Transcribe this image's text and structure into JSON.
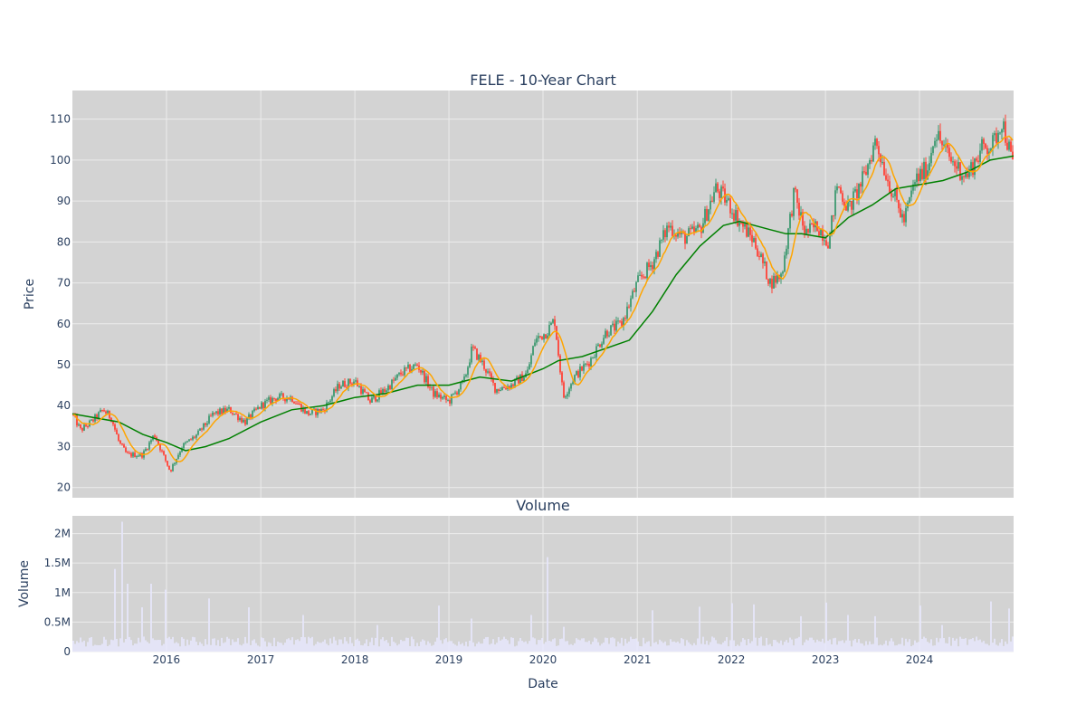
{
  "chart_data": [
    {
      "type": "candlestick",
      "title": "FELE - 10-Year Chart",
      "xlabel": "",
      "ylabel": "Price",
      "xlim": [
        "2015-01-01",
        "2024-12-31"
      ],
      "ylim": [
        17.5,
        117
      ],
      "yticks": [
        20,
        30,
        40,
        50,
        60,
        70,
        80,
        90,
        100,
        110
      ],
      "xticks": [
        {
          "date": "2016-01-01",
          "label": "2016"
        },
        {
          "date": "2017-01-01",
          "label": "2017"
        },
        {
          "date": "2018-01-01",
          "label": "2018"
        },
        {
          "date": "2019-01-01",
          "label": "2019"
        },
        {
          "date": "2020-01-01",
          "label": "2020"
        },
        {
          "date": "2021-01-01",
          "label": "2021"
        },
        {
          "date": "2022-01-01",
          "label": "2022"
        },
        {
          "date": "2023-01-01",
          "label": "2023"
        },
        {
          "date": "2024-01-01",
          "label": "2024"
        }
      ],
      "grid": true,
      "background": "#d3d3d3",
      "colors": {
        "increasing": "#3d9970",
        "decreasing": "#ff4136",
        "ma_short": "#ffa500",
        "ma_long": "#008000"
      },
      "price_path": [
        [
          "2015-01-01",
          38
        ],
        [
          "2015-02-01",
          34
        ],
        [
          "2015-03-15",
          36
        ],
        [
          "2015-05-01",
          39
        ],
        [
          "2015-06-01",
          37
        ],
        [
          "2015-07-01",
          31
        ],
        [
          "2015-08-01",
          28
        ],
        [
          "2015-10-01",
          28
        ],
        [
          "2015-11-15",
          33
        ],
        [
          "2016-01-15",
          24
        ],
        [
          "2016-03-01",
          30
        ],
        [
          "2016-05-01",
          33
        ],
        [
          "2016-07-01",
          38
        ],
        [
          "2016-09-01",
          39
        ],
        [
          "2016-11-01",
          36
        ],
        [
          "2017-01-01",
          40
        ],
        [
          "2017-03-01",
          42
        ],
        [
          "2017-05-01",
          42
        ],
        [
          "2017-07-01",
          38
        ],
        [
          "2017-09-01",
          39
        ],
        [
          "2017-11-01",
          45
        ],
        [
          "2018-01-01",
          46
        ],
        [
          "2018-03-01",
          41
        ],
        [
          "2018-05-01",
          44
        ],
        [
          "2018-07-01",
          48
        ],
        [
          "2018-09-01",
          50
        ],
        [
          "2018-11-01",
          43
        ],
        [
          "2019-01-01",
          41
        ],
        [
          "2019-03-01",
          46
        ],
        [
          "2019-04-01",
          54
        ],
        [
          "2019-05-15",
          50
        ],
        [
          "2019-07-01",
          44
        ],
        [
          "2019-09-01",
          45
        ],
        [
          "2019-11-01",
          48
        ],
        [
          "2019-12-01",
          56
        ],
        [
          "2020-01-15",
          58
        ],
        [
          "2020-02-15",
          61
        ],
        [
          "2020-03-20",
          42
        ],
        [
          "2020-05-01",
          47
        ],
        [
          "2020-07-01",
          51
        ],
        [
          "2020-09-01",
          58
        ],
        [
          "2020-11-01",
          60
        ],
        [
          "2021-01-01",
          70
        ],
        [
          "2021-03-01",
          75
        ],
        [
          "2021-05-01",
          84
        ],
        [
          "2021-07-01",
          81
        ],
        [
          "2021-09-01",
          83
        ],
        [
          "2021-11-01",
          93
        ],
        [
          "2021-12-15",
          90
        ],
        [
          "2022-02-01",
          85
        ],
        [
          "2022-04-01",
          80
        ],
        [
          "2022-06-01",
          70
        ],
        [
          "2022-07-15",
          72
        ],
        [
          "2022-09-01",
          92
        ],
        [
          "2022-10-15",
          82
        ],
        [
          "2022-12-01",
          84
        ],
        [
          "2023-01-15",
          80
        ],
        [
          "2023-02-15",
          94
        ],
        [
          "2023-04-01",
          88
        ],
        [
          "2023-06-01",
          96
        ],
        [
          "2023-07-15",
          105
        ],
        [
          "2023-09-01",
          95
        ],
        [
          "2023-11-01",
          85
        ],
        [
          "2023-12-15",
          95
        ],
        [
          "2024-02-01",
          98
        ],
        [
          "2024-03-01",
          107
        ],
        [
          "2024-05-01",
          100
        ],
        [
          "2024-07-01",
          96
        ],
        [
          "2024-09-01",
          103
        ],
        [
          "2024-10-15",
          104
        ],
        [
          "2024-11-15",
          110
        ],
        [
          "2024-12-31",
          98
        ]
      ],
      "ma_long": [
        [
          "2015-01-01",
          38
        ],
        [
          "2015-04-01",
          37
        ],
        [
          "2015-07-01",
          36
        ],
        [
          "2015-10-01",
          33
        ],
        [
          "2016-01-01",
          31
        ],
        [
          "2016-03-15",
          29
        ],
        [
          "2016-06-01",
          30
        ],
        [
          "2016-09-01",
          32
        ],
        [
          "2017-01-01",
          36
        ],
        [
          "2017-05-01",
          39
        ],
        [
          "2017-09-01",
          40
        ],
        [
          "2018-01-01",
          42
        ],
        [
          "2018-05-01",
          43
        ],
        [
          "2018-09-01",
          45
        ],
        [
          "2019-01-01",
          45
        ],
        [
          "2019-05-01",
          47
        ],
        [
          "2019-09-01",
          46
        ],
        [
          "2020-01-01",
          49
        ],
        [
          "2020-03-01",
          51
        ],
        [
          "2020-06-01",
          52
        ],
        [
          "2020-09-01",
          54
        ],
        [
          "2020-12-01",
          56
        ],
        [
          "2021-03-01",
          63
        ],
        [
          "2021-06-01",
          72
        ],
        [
          "2021-09-01",
          79
        ],
        [
          "2021-12-01",
          84
        ],
        [
          "2022-02-01",
          85
        ],
        [
          "2022-06-01",
          83
        ],
        [
          "2022-08-01",
          82
        ],
        [
          "2022-10-01",
          82
        ],
        [
          "2023-01-01",
          81
        ],
        [
          "2023-04-01",
          86
        ],
        [
          "2023-07-01",
          89
        ],
        [
          "2023-10-01",
          93
        ],
        [
          "2024-01-01",
          94
        ],
        [
          "2024-04-01",
          95
        ],
        [
          "2024-07-01",
          97
        ],
        [
          "2024-10-01",
          100
        ],
        [
          "2024-12-31",
          101
        ]
      ]
    },
    {
      "type": "bar",
      "title": "Volume",
      "xlabel": "Date",
      "ylabel": "Volume",
      "xlim": [
        "2015-01-01",
        "2024-12-31"
      ],
      "ylim": [
        0,
        2300000
      ],
      "yticks": [
        {
          "value": 0,
          "label": "0"
        },
        {
          "value": 500000,
          "label": "0.5M"
        },
        {
          "value": 1000000,
          "label": "1M"
        },
        {
          "value": 1500000,
          "label": "1.5M"
        },
        {
          "value": 2000000,
          "label": "2M"
        }
      ],
      "grid": true,
      "background": "#d3d3d3",
      "bar_color": "#e6e6fa",
      "baseline_volume": 170000,
      "spikes": [
        [
          "2015-06-15",
          1400000
        ],
        [
          "2015-07-15",
          2200000
        ],
        [
          "2015-08-01",
          1150000
        ],
        [
          "2015-10-01",
          750000
        ],
        [
          "2015-11-01",
          1150000
        ],
        [
          "2016-01-01",
          1050000
        ],
        [
          "2016-06-15",
          900000
        ],
        [
          "2016-11-15",
          750000
        ],
        [
          "2017-06-15",
          620000
        ],
        [
          "2018-04-01",
          450000
        ],
        [
          "2018-11-20",
          780000
        ],
        [
          "2019-04-01",
          560000
        ],
        [
          "2019-11-15",
          620000
        ],
        [
          "2020-01-20",
          1600000
        ],
        [
          "2020-03-20",
          420000
        ],
        [
          "2021-03-01",
          700000
        ],
        [
          "2021-09-01",
          760000
        ],
        [
          "2022-01-01",
          820000
        ],
        [
          "2022-04-01",
          800000
        ],
        [
          "2022-10-01",
          600000
        ],
        [
          "2023-01-01",
          830000
        ],
        [
          "2023-04-01",
          620000
        ],
        [
          "2023-07-15",
          600000
        ],
        [
          "2024-01-01",
          780000
        ],
        [
          "2024-04-01",
          450000
        ],
        [
          "2024-10-01",
          850000
        ],
        [
          "2024-12-15",
          730000
        ]
      ]
    }
  ]
}
